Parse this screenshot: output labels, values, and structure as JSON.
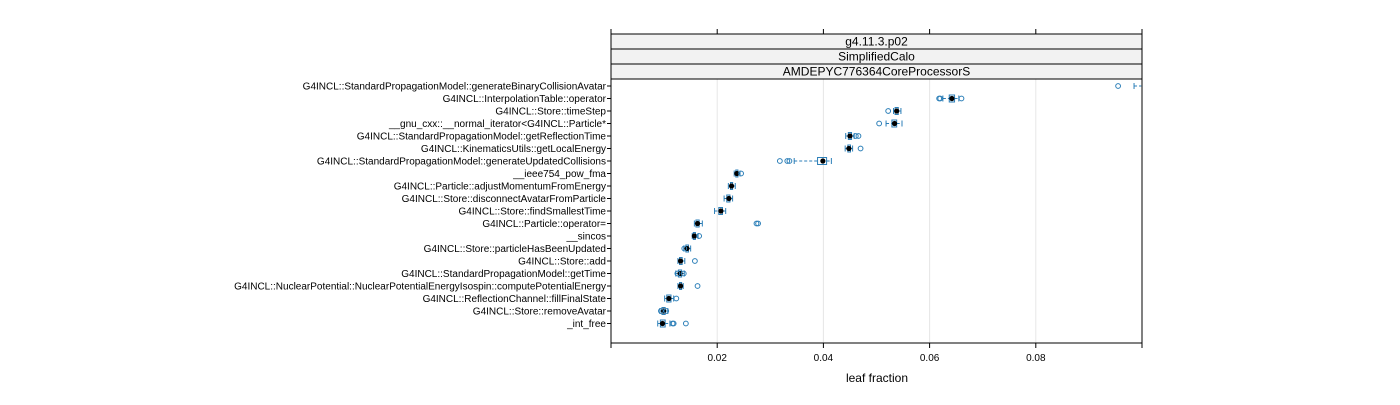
{
  "chart_data": {
    "type": "box",
    "panel_strips": [
      "g4.11.3.p02",
      "SimplifiedCalo",
      "AMDEPYC776364CoreProcessorS"
    ],
    "xlabel": "leaf fraction",
    "xlim": [
      0.0,
      0.1
    ],
    "xticks": [
      0.02,
      0.04,
      0.06,
      0.08
    ],
    "xtick_labels": [
      "0.02",
      "0.04",
      "0.06",
      "0.08"
    ],
    "grid": "vertical",
    "colors": {
      "box": "#2c7fb8",
      "median": "#000000",
      "grid": "#e6e6e6",
      "strip_fill": "#f2f2f2"
    },
    "categories": [
      "G4INCL::StandardPropagationModel::generateBinaryCollisionAvatar",
      "G4INCL::InterpolationTable::operator",
      "G4INCL::Store::timeStep",
      "__gnu_cxx::__normal_iterator<G4INCL::Particle*",
      "G4INCL::StandardPropagationModel::getReflectionTime",
      "G4INCL::KinematicsUtils::getLocalEnergy",
      "G4INCL::StandardPropagationModel::generateUpdatedCollisions",
      "__ieee754_pow_fma",
      "G4INCL::Particle::adjustMomentumFromEnergy",
      "G4INCL::Store::disconnectAvatarFromParticle",
      "G4INCL::Store::findSmallestTime",
      "G4INCL::Particle::operator=",
      "__sincos",
      "G4INCL::Store::particleHasBeenUpdated",
      "G4INCL::Store::add",
      "G4INCL::StandardPropagationModel::getTime",
      "G4INCL::NuclearPotential::NuclearPotentialEnergyIsospin::computePotentialEnergy",
      "G4INCL::ReflectionChannel::fillFinalState",
      "G4INCL::Store::removeAvatar",
      "_int_free"
    ],
    "boxes": [
      {
        "min": 0.0985,
        "q1": 0.1005,
        "median": 0.101,
        "q3": 0.1015,
        "max": 0.1025,
        "outliers": [
          0.0955
        ]
      },
      {
        "min": 0.0625,
        "q1": 0.0637,
        "median": 0.0642,
        "q3": 0.0647,
        "max": 0.0655,
        "outliers": [
          0.0618,
          0.062,
          0.066
        ]
      },
      {
        "min": 0.0532,
        "q1": 0.0535,
        "median": 0.0538,
        "q3": 0.0541,
        "max": 0.0546,
        "outliers": [
          0.0522
        ]
      },
      {
        "min": 0.0518,
        "q1": 0.0529,
        "median": 0.0534,
        "q3": 0.0538,
        "max": 0.0548,
        "outliers": [
          0.0505
        ]
      },
      {
        "min": 0.0442,
        "q1": 0.0447,
        "median": 0.045,
        "q3": 0.0453,
        "max": 0.0458,
        "outliers": [
          0.0461,
          0.0466
        ]
      },
      {
        "min": 0.0441,
        "q1": 0.0446,
        "median": 0.0448,
        "q3": 0.0451,
        "max": 0.0455,
        "outliers": [
          0.047
        ]
      },
      {
        "min": 0.0345,
        "q1": 0.0389,
        "median": 0.0399,
        "q3": 0.0406,
        "max": 0.0415,
        "outliers": [
          0.0318,
          0.0332,
          0.0336
        ]
      },
      {
        "min": 0.0232,
        "q1": 0.0235,
        "median": 0.0237,
        "q3": 0.0239,
        "max": 0.0243,
        "outliers": [
          0.0245
        ]
      },
      {
        "min": 0.0221,
        "q1": 0.0225,
        "median": 0.0227,
        "q3": 0.0229,
        "max": 0.0234,
        "outliers": []
      },
      {
        "min": 0.0213,
        "q1": 0.0218,
        "median": 0.0222,
        "q3": 0.0224,
        "max": 0.0229,
        "outliers": []
      },
      {
        "min": 0.0195,
        "q1": 0.0203,
        "median": 0.0207,
        "q3": 0.021,
        "max": 0.0216,
        "outliers": []
      },
      {
        "min": 0.0157,
        "q1": 0.016,
        "median": 0.0163,
        "q3": 0.0166,
        "max": 0.0172,
        "outliers": [
          0.0274,
          0.0277
        ]
      },
      {
        "min": 0.0153,
        "q1": 0.0155,
        "median": 0.0157,
        "q3": 0.0159,
        "max": 0.0164,
        "outliers": [
          0.0166
        ]
      },
      {
        "min": 0.0137,
        "q1": 0.0141,
        "median": 0.0143,
        "q3": 0.0146,
        "max": 0.015,
        "outliers": [
          0.0138
        ]
      },
      {
        "min": 0.0126,
        "q1": 0.0129,
        "median": 0.0131,
        "q3": 0.0134,
        "max": 0.0139,
        "outliers": [
          0.0158
        ]
      },
      {
        "min": 0.0122,
        "q1": 0.0127,
        "median": 0.013,
        "q3": 0.0133,
        "max": 0.0138,
        "outliers": [
          0.0125,
          0.0137
        ]
      },
      {
        "min": 0.0126,
        "q1": 0.0129,
        "median": 0.0131,
        "q3": 0.0133,
        "max": 0.0136,
        "outliers": [
          0.0163
        ]
      },
      {
        "min": 0.0101,
        "q1": 0.0105,
        "median": 0.0109,
        "q3": 0.0113,
        "max": 0.0118,
        "outliers": [
          0.0123
        ]
      },
      {
        "min": 0.0092,
        "q1": 0.0096,
        "median": 0.0099,
        "q3": 0.0102,
        "max": 0.0107,
        "outliers": [
          0.0094,
          0.0104
        ]
      },
      {
        "min": 0.0088,
        "q1": 0.0093,
        "median": 0.0097,
        "q3": 0.0102,
        "max": 0.0111,
        "outliers": [
          0.0116,
          0.0118,
          0.0141
        ]
      }
    ]
  }
}
